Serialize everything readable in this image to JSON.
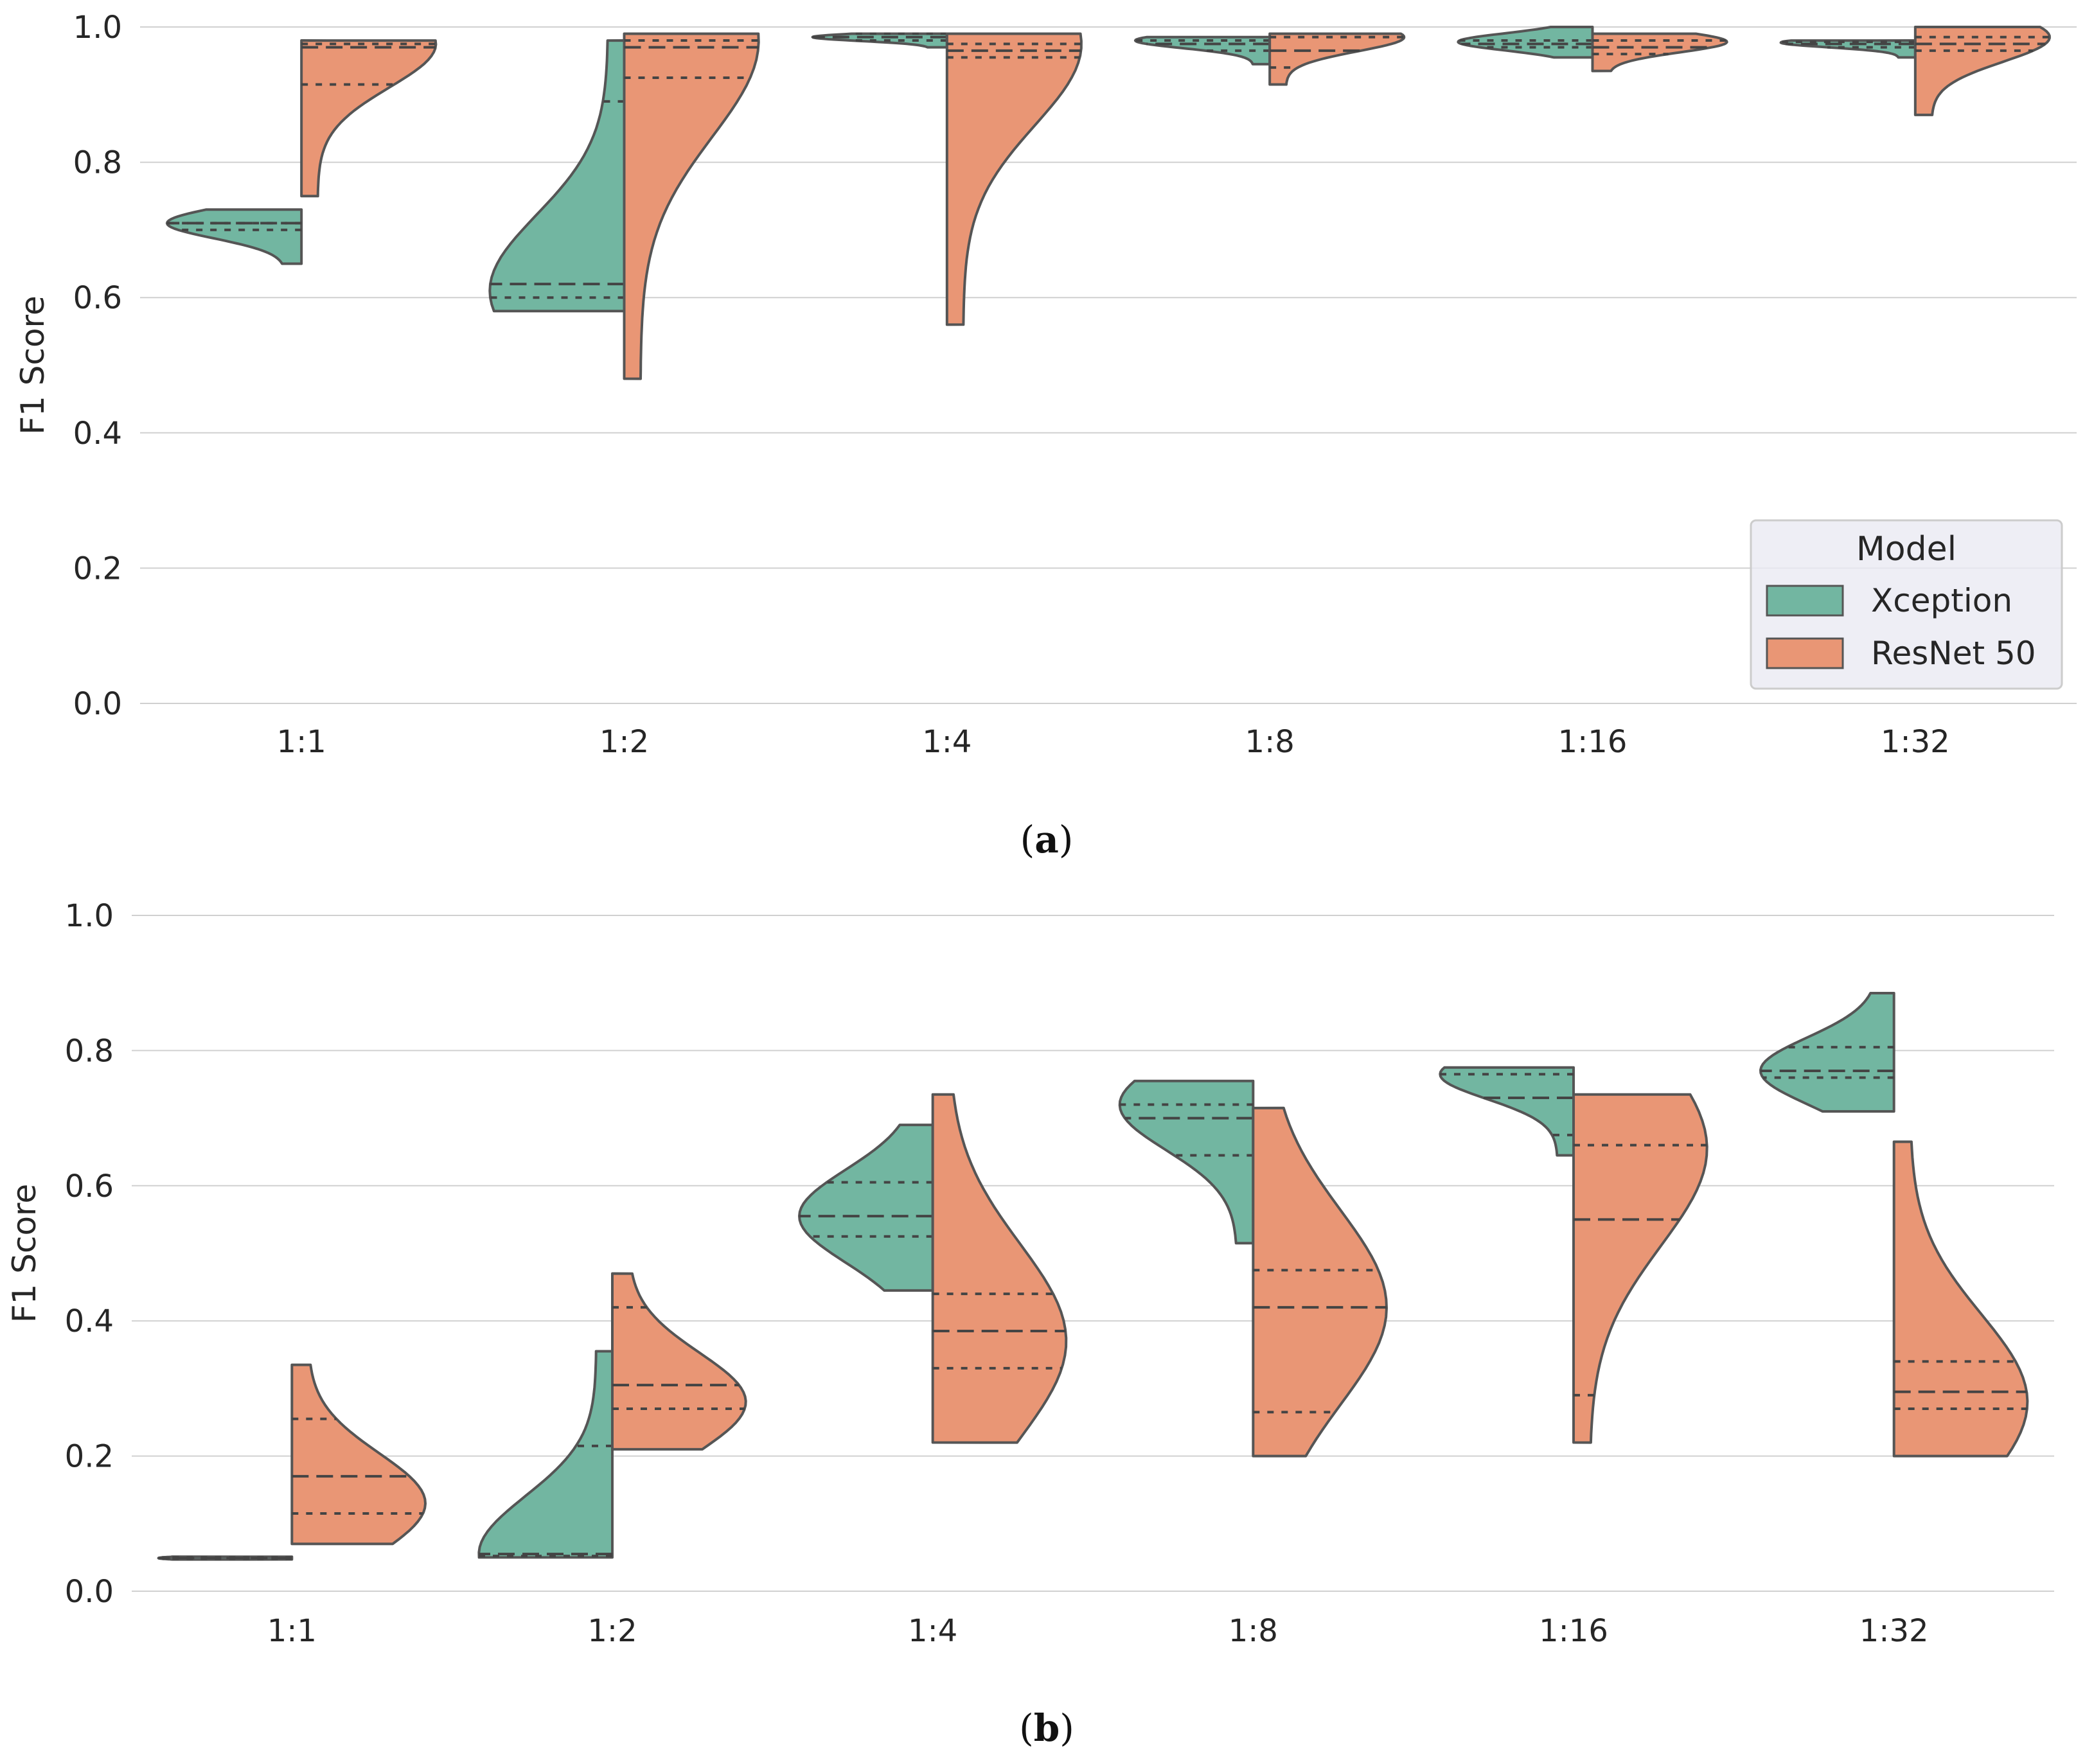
{
  "chart_data": [
    {
      "type": "violin",
      "panel_label": "a",
      "title": "",
      "xlabel": "",
      "ylabel": "F1 Score",
      "ylim": [
        0.0,
        1.0
      ],
      "yticks": [
        "0.0",
        "0.2",
        "0.4",
        "0.6",
        "0.8",
        "1.0"
      ],
      "grid": true,
      "categories": [
        "1:1",
        "1:2",
        "1:4",
        "1:8",
        "1:16",
        "1:32"
      ],
      "legend": {
        "title": "Model",
        "placement": "lower-right",
        "entries": [
          "Xception",
          "ResNet 50"
        ]
      },
      "series": [
        {
          "name": "Xception",
          "color": "#72b6a1",
          "side": "left",
          "violins": [
            {
              "min": 0.65,
              "max": 0.73,
              "q1": 0.7,
              "median": 0.71,
              "q3": 0.71,
              "mode": 0.71,
              "width": 0.85
            },
            {
              "min": 0.58,
              "max": 0.98,
              "q1": 0.6,
              "median": 0.62,
              "q3": 0.89,
              "mode": 0.61,
              "width": 0.85
            },
            {
              "min": 0.97,
              "max": 0.99,
              "q1": 0.98,
              "median": 0.985,
              "q3": 0.99,
              "mode": 0.985,
              "width": 0.85
            },
            {
              "min": 0.945,
              "max": 0.985,
              "q1": 0.965,
              "median": 0.975,
              "q3": 0.98,
              "mode": 0.98,
              "width": 0.85
            },
            {
              "min": 0.955,
              "max": 1.0,
              "q1": 0.97,
              "median": 0.975,
              "q3": 0.98,
              "mode": 0.978,
              "width": 0.85
            },
            {
              "min": 0.955,
              "max": 0.98,
              "q1": 0.97,
              "median": 0.975,
              "q3": 0.978,
              "mode": 0.977,
              "width": 0.85
            }
          ]
        },
        {
          "name": "ResNet 50",
          "color": "#e99675",
          "side": "right",
          "violins": [
            {
              "min": 0.75,
              "max": 0.98,
              "q1": 0.915,
              "median": 0.97,
              "q3": 0.975,
              "mode": 0.975,
              "width": 0.85
            },
            {
              "min": 0.48,
              "max": 0.99,
              "q1": 0.925,
              "median": 0.97,
              "q3": 0.98,
              "mode": 0.98,
              "width": 0.85
            },
            {
              "min": 0.56,
              "max": 0.99,
              "q1": 0.955,
              "median": 0.965,
              "q3": 0.975,
              "mode": 0.975,
              "width": 0.85
            },
            {
              "min": 0.915,
              "max": 0.99,
              "q1": 0.94,
              "median": 0.965,
              "q3": 0.985,
              "mode": 0.985,
              "width": 0.85
            },
            {
              "min": 0.935,
              "max": 0.99,
              "q1": 0.96,
              "median": 0.97,
              "q3": 0.98,
              "mode": 0.978,
              "width": 0.85
            },
            {
              "min": 0.87,
              "max": 1.0,
              "q1": 0.965,
              "median": 0.975,
              "q3": 0.985,
              "mode": 0.985,
              "width": 0.85
            }
          ]
        }
      ]
    },
    {
      "type": "violin",
      "panel_label": "b",
      "title": "",
      "xlabel": "",
      "ylabel": "F1 Score",
      "ylim": [
        0.0,
        1.0
      ],
      "yticks": [
        "0.0",
        "0.2",
        "0.4",
        "0.6",
        "0.8",
        "1.0"
      ],
      "grid": true,
      "categories": [
        "1:1",
        "1:2",
        "1:4",
        "1:8",
        "1:16",
        "1:32"
      ],
      "series": [
        {
          "name": "Xception",
          "color": "#72b6a1",
          "side": "left",
          "violins": [
            {
              "min": 0.047,
              "max": 0.051,
              "q1": 0.048,
              "median": 0.049,
              "q3": 0.05,
              "mode": 0.049,
              "width": 0.85
            },
            {
              "min": 0.05,
              "max": 0.355,
              "q1": 0.052,
              "median": 0.055,
              "q3": 0.215,
              "mode": 0.055,
              "width": 0.85
            },
            {
              "min": 0.445,
              "max": 0.69,
              "q1": 0.525,
              "median": 0.555,
              "q3": 0.605,
              "mode": 0.555,
              "width": 0.85
            },
            {
              "min": 0.515,
              "max": 0.755,
              "q1": 0.645,
              "median": 0.7,
              "q3": 0.72,
              "mode": 0.72,
              "width": 0.85
            },
            {
              "min": 0.645,
              "max": 0.775,
              "q1": 0.675,
              "median": 0.73,
              "q3": 0.765,
              "mode": 0.765,
              "width": 0.85
            },
            {
              "min": 0.71,
              "max": 0.885,
              "q1": 0.76,
              "median": 0.77,
              "q3": 0.805,
              "mode": 0.77,
              "width": 0.85
            }
          ]
        },
        {
          "name": "ResNet 50",
          "color": "#e99675",
          "side": "right",
          "violins": [
            {
              "min": 0.07,
              "max": 0.335,
              "q1": 0.115,
              "median": 0.17,
              "q3": 0.255,
              "mode": 0.13,
              "width": 0.85
            },
            {
              "min": 0.21,
              "max": 0.47,
              "q1": 0.27,
              "median": 0.305,
              "q3": 0.42,
              "mode": 0.28,
              "width": 0.85
            },
            {
              "min": 0.22,
              "max": 0.735,
              "q1": 0.33,
              "median": 0.385,
              "q3": 0.44,
              "mode": 0.37,
              "width": 0.85
            },
            {
              "min": 0.2,
              "max": 0.715,
              "q1": 0.265,
              "median": 0.42,
              "q3": 0.475,
              "mode": 0.42,
              "width": 0.85
            },
            {
              "min": 0.22,
              "max": 0.735,
              "q1": 0.29,
              "median": 0.55,
              "q3": 0.66,
              "mode": 0.655,
              "width": 0.85
            },
            {
              "min": 0.2,
              "max": 0.665,
              "q1": 0.27,
              "median": 0.295,
              "q3": 0.34,
              "mode": 0.28,
              "width": 0.85
            }
          ]
        }
      ]
    }
  ]
}
